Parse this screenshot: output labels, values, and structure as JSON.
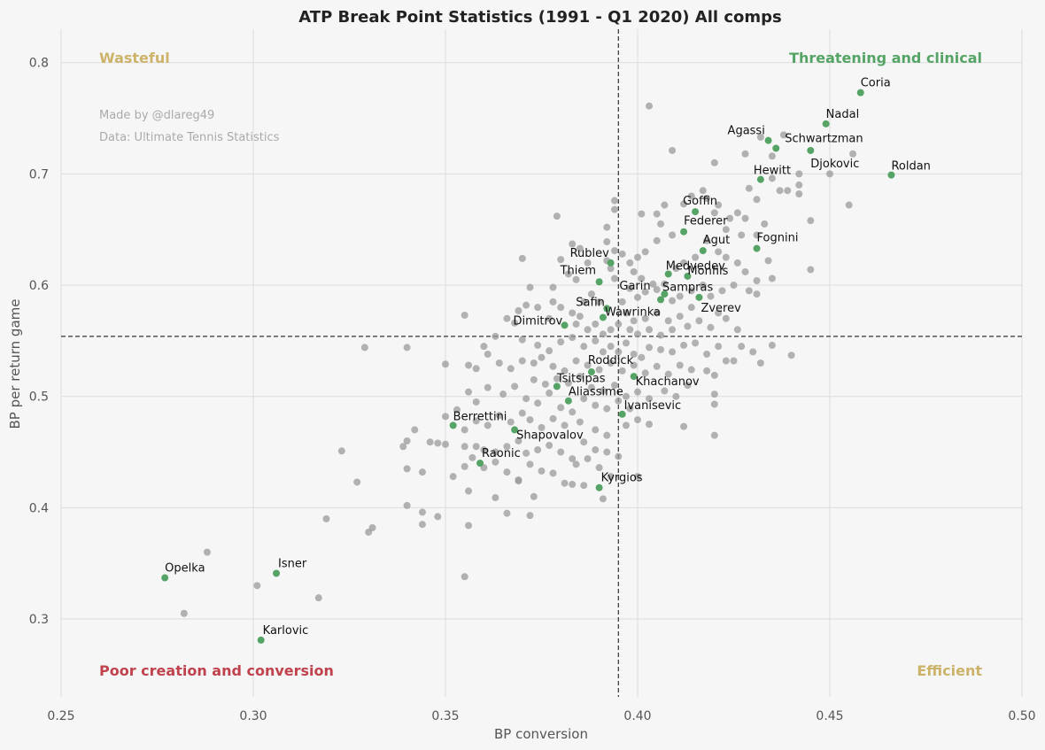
{
  "chart_data": {
    "type": "scatter",
    "title": "ATP Break Point Statistics (1991 - Q1 2020) All comps",
    "xlabel": "BP conversion",
    "ylabel": "BP per return game",
    "xlim": [
      0.25,
      0.5
    ],
    "ylim": [
      0.23,
      0.83
    ],
    "xticks": [
      0.25,
      0.3,
      0.35,
      0.4,
      0.45,
      0.5
    ],
    "yticks": [
      0.3,
      0.4,
      0.5,
      0.6,
      0.7,
      0.8
    ],
    "xtick_labels": [
      "0.25",
      "0.30",
      "0.35",
      "0.40",
      "0.45",
      "0.50"
    ],
    "ytick_labels": [
      "0.3",
      "0.4",
      "0.5",
      "0.6",
      "0.7",
      "0.8"
    ],
    "grid": true,
    "reference_lines": {
      "x": 0.395,
      "y": 0.554
    },
    "credits": [
      "Made by @dlareg49",
      "Data: Ultimate Tennis Statistics"
    ],
    "quadrant_labels": {
      "top_left": "Wasteful",
      "top_right": "Threatening and clinical",
      "bottom_left": "Poor creation and conversion",
      "bottom_right": "Efficient"
    },
    "colors": {
      "highlight": "#55a465",
      "background_points": "#9a9a9a",
      "wasteful": "#cdb36a",
      "threatening": "#55a465",
      "poor": "#c0424d",
      "efficient": "#cdb36a"
    },
    "highlighted_players": [
      {
        "name": "Coria",
        "x": 0.458,
        "y": 0.773
      },
      {
        "name": "Nadal",
        "x": 0.449,
        "y": 0.745
      },
      {
        "name": "Agassi",
        "x": 0.434,
        "y": 0.73
      },
      {
        "name": "Schwartzman",
        "x": 0.436,
        "y": 0.723
      },
      {
        "name": "Djokovic",
        "x": 0.445,
        "y": 0.721
      },
      {
        "name": "Roldan",
        "x": 0.466,
        "y": 0.699
      },
      {
        "name": "Hewitt",
        "x": 0.432,
        "y": 0.695
      },
      {
        "name": "Goffin",
        "x": 0.415,
        "y": 0.666
      },
      {
        "name": "Federer",
        "x": 0.412,
        "y": 0.648
      },
      {
        "name": "Agut",
        "x": 0.417,
        "y": 0.631
      },
      {
        "name": "Fognini",
        "x": 0.431,
        "y": 0.633
      },
      {
        "name": "Rublev",
        "x": 0.393,
        "y": 0.62
      },
      {
        "name": "Medvedev",
        "x": 0.408,
        "y": 0.61
      },
      {
        "name": "Monfils",
        "x": 0.413,
        "y": 0.608
      },
      {
        "name": "Thiem",
        "x": 0.39,
        "y": 0.603
      },
      {
        "name": "Sampras",
        "x": 0.406,
        "y": 0.587
      },
      {
        "name": "Garin",
        "x": 0.407,
        "y": 0.592
      },
      {
        "name": "Zverev",
        "x": 0.416,
        "y": 0.589
      },
      {
        "name": "Safin",
        "x": 0.392,
        "y": 0.579
      },
      {
        "name": "Wawrinka",
        "x": 0.391,
        "y": 0.571
      },
      {
        "name": "Dimitrov",
        "x": 0.381,
        "y": 0.564
      },
      {
        "name": "Roddick",
        "x": 0.388,
        "y": 0.522
      },
      {
        "name": "Khachanov",
        "x": 0.399,
        "y": 0.518
      },
      {
        "name": "Tsitsipas",
        "x": 0.379,
        "y": 0.509
      },
      {
        "name": "Aliassime",
        "x": 0.382,
        "y": 0.496
      },
      {
        "name": "Ivanisevic",
        "x": 0.396,
        "y": 0.484
      },
      {
        "name": "Berrettini",
        "x": 0.352,
        "y": 0.474
      },
      {
        "name": "Shapovalov",
        "x": 0.368,
        "y": 0.47
      },
      {
        "name": "Raonic",
        "x": 0.359,
        "y": 0.44
      },
      {
        "name": "Kyrgios",
        "x": 0.39,
        "y": 0.418
      },
      {
        "name": "Isner",
        "x": 0.306,
        "y": 0.341
      },
      {
        "name": "Opelka",
        "x": 0.277,
        "y": 0.337
      },
      {
        "name": "Karlovic",
        "x": 0.302,
        "y": 0.281
      }
    ],
    "other_players": [
      [
        0.403,
        0.761
      ],
      [
        0.409,
        0.721
      ],
      [
        0.42,
        0.71
      ],
      [
        0.432,
        0.733
      ],
      [
        0.438,
        0.735
      ],
      [
        0.435,
        0.716
      ],
      [
        0.428,
        0.718
      ],
      [
        0.442,
        0.7
      ],
      [
        0.45,
        0.7
      ],
      [
        0.456,
        0.718
      ],
      [
        0.455,
        0.672
      ],
      [
        0.445,
        0.658
      ],
      [
        0.445,
        0.614
      ],
      [
        0.437,
        0.685
      ],
      [
        0.439,
        0.685
      ],
      [
        0.442,
        0.69
      ],
      [
        0.442,
        0.682
      ],
      [
        0.429,
        0.687
      ],
      [
        0.431,
        0.677
      ],
      [
        0.435,
        0.696
      ],
      [
        0.426,
        0.665
      ],
      [
        0.428,
        0.66
      ],
      [
        0.433,
        0.655
      ],
      [
        0.431,
        0.645
      ],
      [
        0.427,
        0.645
      ],
      [
        0.424,
        0.66
      ],
      [
        0.423,
        0.65
      ],
      [
        0.42,
        0.665
      ],
      [
        0.421,
        0.672
      ],
      [
        0.418,
        0.678
      ],
      [
        0.417,
        0.685
      ],
      [
        0.414,
        0.68
      ],
      [
        0.412,
        0.673
      ],
      [
        0.407,
        0.672
      ],
      [
        0.405,
        0.664
      ],
      [
        0.401,
        0.664
      ],
      [
        0.406,
        0.655
      ],
      [
        0.409,
        0.645
      ],
      [
        0.405,
        0.64
      ],
      [
        0.402,
        0.63
      ],
      [
        0.4,
        0.625
      ],
      [
        0.398,
        0.62
      ],
      [
        0.396,
        0.628
      ],
      [
        0.394,
        0.631
      ],
      [
        0.393,
        0.615
      ],
      [
        0.392,
        0.622
      ],
      [
        0.394,
        0.606
      ],
      [
        0.399,
        0.612
      ],
      [
        0.401,
        0.606
      ],
      [
        0.404,
        0.601
      ],
      [
        0.407,
        0.601
      ],
      [
        0.41,
        0.615
      ],
      [
        0.412,
        0.62
      ],
      [
        0.415,
        0.625
      ],
      [
        0.418,
        0.64
      ],
      [
        0.421,
        0.63
      ],
      [
        0.423,
        0.625
      ],
      [
        0.426,
        0.62
      ],
      [
        0.428,
        0.612
      ],
      [
        0.431,
        0.604
      ],
      [
        0.434,
        0.622
      ],
      [
        0.435,
        0.606
      ],
      [
        0.429,
        0.595
      ],
      [
        0.431,
        0.592
      ],
      [
        0.425,
        0.6
      ],
      [
        0.422,
        0.595
      ],
      [
        0.419,
        0.59
      ],
      [
        0.417,
        0.6
      ],
      [
        0.414,
        0.595
      ],
      [
        0.411,
        0.59
      ],
      [
        0.409,
        0.586
      ],
      [
        0.405,
        0.596
      ],
      [
        0.402,
        0.594
      ],
      [
        0.4,
        0.589
      ],
      [
        0.398,
        0.597
      ],
      [
        0.396,
        0.585
      ],
      [
        0.397,
        0.575
      ],
      [
        0.399,
        0.568
      ],
      [
        0.402,
        0.57
      ],
      [
        0.405,
        0.575
      ],
      [
        0.408,
        0.568
      ],
      [
        0.411,
        0.572
      ],
      [
        0.414,
        0.58
      ],
      [
        0.416,
        0.568
      ],
      [
        0.419,
        0.562
      ],
      [
        0.421,
        0.575
      ],
      [
        0.423,
        0.57
      ],
      [
        0.426,
        0.56
      ],
      [
        0.413,
        0.563
      ],
      [
        0.409,
        0.56
      ],
      [
        0.406,
        0.555
      ],
      [
        0.403,
        0.56
      ],
      [
        0.4,
        0.556
      ],
      [
        0.398,
        0.56
      ],
      [
        0.395,
        0.565
      ],
      [
        0.393,
        0.56
      ],
      [
        0.391,
        0.556
      ],
      [
        0.389,
        0.565
      ],
      [
        0.387,
        0.56
      ],
      [
        0.385,
        0.572
      ],
      [
        0.384,
        0.565
      ],
      [
        0.383,
        0.575
      ],
      [
        0.386,
        0.585
      ],
      [
        0.388,
        0.592
      ],
      [
        0.39,
        0.585
      ],
      [
        0.38,
        0.58
      ],
      [
        0.378,
        0.585
      ],
      [
        0.377,
        0.57
      ],
      [
        0.374,
        0.58
      ],
      [
        0.371,
        0.582
      ],
      [
        0.369,
        0.577
      ],
      [
        0.366,
        0.57
      ],
      [
        0.368,
        0.566
      ],
      [
        0.372,
        0.598
      ],
      [
        0.378,
        0.598
      ],
      [
        0.382,
        0.61
      ],
      [
        0.384,
        0.605
      ],
      [
        0.38,
        0.623
      ],
      [
        0.385,
        0.633
      ],
      [
        0.387,
        0.62
      ],
      [
        0.379,
        0.662
      ],
      [
        0.392,
        0.652
      ],
      [
        0.394,
        0.668
      ],
      [
        0.394,
        0.676
      ],
      [
        0.392,
        0.639
      ],
      [
        0.383,
        0.637
      ],
      [
        0.37,
        0.624
      ],
      [
        0.355,
        0.573
      ],
      [
        0.36,
        0.545
      ],
      [
        0.363,
        0.554
      ],
      [
        0.37,
        0.551
      ],
      [
        0.374,
        0.546
      ],
      [
        0.377,
        0.541
      ],
      [
        0.38,
        0.549
      ],
      [
        0.383,
        0.553
      ],
      [
        0.386,
        0.545
      ],
      [
        0.389,
        0.55
      ],
      [
        0.391,
        0.54
      ],
      [
        0.393,
        0.545
      ],
      [
        0.395,
        0.54
      ],
      [
        0.397,
        0.548
      ],
      [
        0.399,
        0.538
      ],
      [
        0.401,
        0.535
      ],
      [
        0.403,
        0.544
      ],
      [
        0.406,
        0.542
      ],
      [
        0.409,
        0.54
      ],
      [
        0.412,
        0.546
      ],
      [
        0.415,
        0.548
      ],
      [
        0.418,
        0.538
      ],
      [
        0.421,
        0.545
      ],
      [
        0.425,
        0.532
      ],
      [
        0.427,
        0.545
      ],
      [
        0.43,
        0.54
      ],
      [
        0.432,
        0.53
      ],
      [
        0.435,
        0.546
      ],
      [
        0.44,
        0.537
      ],
      [
        0.329,
        0.544
      ],
      [
        0.34,
        0.544
      ],
      [
        0.35,
        0.529
      ],
      [
        0.356,
        0.528
      ],
      [
        0.358,
        0.525
      ],
      [
        0.361,
        0.538
      ],
      [
        0.364,
        0.53
      ],
      [
        0.367,
        0.525
      ],
      [
        0.37,
        0.532
      ],
      [
        0.373,
        0.53
      ],
      [
        0.375,
        0.535
      ],
      [
        0.378,
        0.527
      ],
      [
        0.381,
        0.523
      ],
      [
        0.384,
        0.532
      ],
      [
        0.387,
        0.528
      ],
      [
        0.39,
        0.524
      ],
      [
        0.393,
        0.53
      ],
      [
        0.396,
        0.523
      ],
      [
        0.399,
        0.528
      ],
      [
        0.402,
        0.521
      ],
      [
        0.405,
        0.527
      ],
      [
        0.408,
        0.52
      ],
      [
        0.411,
        0.528
      ],
      [
        0.414,
        0.524
      ],
      [
        0.418,
        0.523
      ],
      [
        0.42,
        0.519
      ],
      [
        0.423,
        0.532
      ],
      [
        0.373,
        0.515
      ],
      [
        0.376,
        0.511
      ],
      [
        0.379,
        0.516
      ],
      [
        0.382,
        0.512
      ],
      [
        0.385,
        0.518
      ],
      [
        0.388,
        0.508
      ],
      [
        0.391,
        0.505
      ],
      [
        0.394,
        0.51
      ],
      [
        0.397,
        0.5
      ],
      [
        0.4,
        0.504
      ],
      [
        0.403,
        0.498
      ],
      [
        0.407,
        0.505
      ],
      [
        0.41,
        0.5
      ],
      [
        0.413,
        0.51
      ],
      [
        0.42,
        0.502
      ],
      [
        0.42,
        0.493
      ],
      [
        0.356,
        0.504
      ],
      [
        0.358,
        0.495
      ],
      [
        0.361,
        0.508
      ],
      [
        0.365,
        0.502
      ],
      [
        0.368,
        0.509
      ],
      [
        0.371,
        0.498
      ],
      [
        0.374,
        0.494
      ],
      [
        0.377,
        0.503
      ],
      [
        0.38,
        0.49
      ],
      [
        0.383,
        0.486
      ],
      [
        0.386,
        0.498
      ],
      [
        0.389,
        0.492
      ],
      [
        0.392,
        0.489
      ],
      [
        0.395,
        0.496
      ],
      [
        0.398,
        0.489
      ],
      [
        0.342,
        0.47
      ],
      [
        0.346,
        0.459
      ],
      [
        0.35,
        0.482
      ],
      [
        0.353,
        0.488
      ],
      [
        0.355,
        0.47
      ],
      [
        0.358,
        0.478
      ],
      [
        0.361,
        0.474
      ],
      [
        0.364,
        0.483
      ],
      [
        0.367,
        0.477
      ],
      [
        0.37,
        0.485
      ],
      [
        0.372,
        0.479
      ],
      [
        0.375,
        0.472
      ],
      [
        0.378,
        0.48
      ],
      [
        0.381,
        0.474
      ],
      [
        0.385,
        0.477
      ],
      [
        0.389,
        0.47
      ],
      [
        0.392,
        0.465
      ],
      [
        0.397,
        0.474
      ],
      [
        0.4,
        0.479
      ],
      [
        0.403,
        0.475
      ],
      [
        0.412,
        0.473
      ],
      [
        0.42,
        0.465
      ],
      [
        0.34,
        0.46
      ],
      [
        0.339,
        0.455
      ],
      [
        0.348,
        0.458
      ],
      [
        0.35,
        0.457
      ],
      [
        0.355,
        0.455
      ],
      [
        0.358,
        0.455
      ],
      [
        0.36,
        0.452
      ],
      [
        0.363,
        0.45
      ],
      [
        0.366,
        0.455
      ],
      [
        0.369,
        0.46
      ],
      [
        0.371,
        0.449
      ],
      [
        0.374,
        0.452
      ],
      [
        0.377,
        0.456
      ],
      [
        0.38,
        0.45
      ],
      [
        0.383,
        0.444
      ],
      [
        0.386,
        0.459
      ],
      [
        0.389,
        0.452
      ],
      [
        0.392,
        0.45
      ],
      [
        0.395,
        0.446
      ],
      [
        0.323,
        0.451
      ],
      [
        0.344,
        0.432
      ],
      [
        0.352,
        0.428
      ],
      [
        0.355,
        0.437
      ],
      [
        0.357,
        0.445
      ],
      [
        0.36,
        0.436
      ],
      [
        0.363,
        0.441
      ],
      [
        0.366,
        0.432
      ],
      [
        0.369,
        0.425
      ],
      [
        0.372,
        0.439
      ],
      [
        0.375,
        0.433
      ],
      [
        0.378,
        0.431
      ],
      [
        0.381,
        0.422
      ],
      [
        0.384,
        0.439
      ],
      [
        0.387,
        0.444
      ],
      [
        0.39,
        0.436
      ],
      [
        0.393,
        0.428
      ],
      [
        0.4,
        0.428
      ],
      [
        0.327,
        0.423
      ],
      [
        0.34,
        0.435
      ],
      [
        0.356,
        0.415
      ],
      [
        0.363,
        0.409
      ],
      [
        0.369,
        0.424
      ],
      [
        0.373,
        0.41
      ],
      [
        0.383,
        0.421
      ],
      [
        0.386,
        0.42
      ],
      [
        0.391,
        0.408
      ],
      [
        0.34,
        0.402
      ],
      [
        0.344,
        0.396
      ],
      [
        0.348,
        0.392
      ],
      [
        0.344,
        0.385
      ],
      [
        0.356,
        0.384
      ],
      [
        0.366,
        0.395
      ],
      [
        0.372,
        0.393
      ],
      [
        0.319,
        0.39
      ],
      [
        0.33,
        0.378
      ],
      [
        0.331,
        0.382
      ],
      [
        0.288,
        0.36
      ],
      [
        0.355,
        0.338
      ],
      [
        0.301,
        0.33
      ],
      [
        0.317,
        0.319
      ],
      [
        0.282,
        0.305
      ]
    ]
  }
}
